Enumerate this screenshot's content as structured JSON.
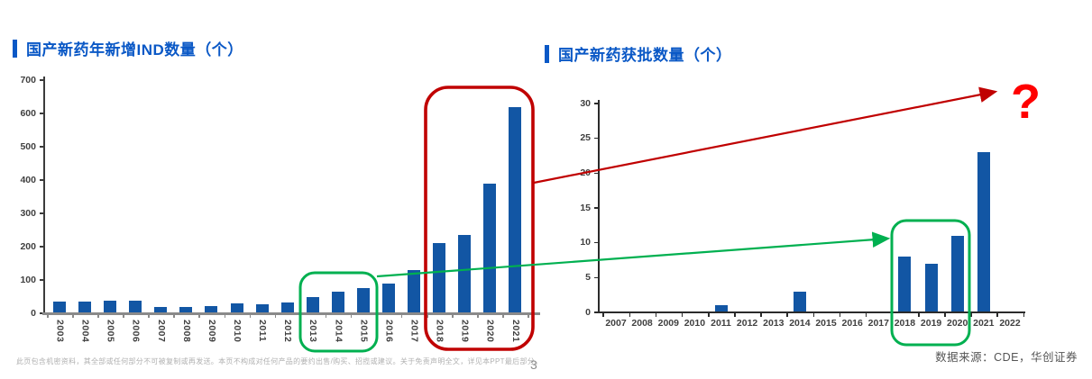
{
  "page": {
    "number": "3"
  },
  "footer": {
    "disclaimer": "此页包含机密资料，其全部或任何部分不可被复制或再发送。本页不构成对任何产品的要约出售/购买、招揽或建议。关于免责声明全文，详见本PPT最后部分。",
    "source": "数据来源：CDE，华创证券"
  },
  "annotations": {
    "question_mark": "?",
    "red_color": "#c00000",
    "green_color": "#00b050",
    "question_color": "#ff0000"
  },
  "colors": {
    "title_blue": "#0a58c6",
    "bar_blue": "#1256a4",
    "axis_label": "#404040"
  },
  "chart_data": [
    {
      "type": "bar",
      "title": "国产新药年新增IND数量（个）",
      "categories": [
        "2003",
        "2004",
        "2005",
        "2006",
        "2007",
        "2008",
        "2009",
        "2010",
        "2011",
        "2012",
        "2013",
        "2014",
        "2015",
        "2016",
        "2017",
        "2018",
        "2019",
        "2020",
        "2021"
      ],
      "values": [
        35,
        35,
        38,
        38,
        20,
        20,
        23,
        30,
        28,
        33,
        50,
        65,
        75,
        90,
        130,
        210,
        235,
        390,
        620
      ],
      "xlabel": "",
      "ylabel": "",
      "ylim": [
        0,
        700
      ],
      "yticks": [
        0,
        100,
        200,
        300,
        400,
        500,
        600,
        700
      ],
      "grid": false,
      "legend": "none",
      "bar_color": "#1256a4",
      "xlabel_rotation": 90
    },
    {
      "type": "bar",
      "title": "国产新药获批数量（个）",
      "categories": [
        "2007",
        "2008",
        "2009",
        "2010",
        "2011",
        "2012",
        "2013",
        "2014",
        "2015",
        "2016",
        "2017",
        "2018",
        "2019",
        "2020",
        "2021",
        "2022"
      ],
      "values": [
        0,
        0,
        0,
        0,
        1,
        0,
        0,
        3,
        0,
        0,
        0,
        8,
        7,
        11,
        23,
        0
      ],
      "xlabel": "",
      "ylabel": "",
      "ylim": [
        0,
        30
      ],
      "yticks": [
        0,
        5,
        10,
        15,
        20,
        25,
        30
      ],
      "grid": false,
      "legend": "none",
      "bar_color": "#1256a4",
      "xlabel_rotation": 0
    }
  ]
}
